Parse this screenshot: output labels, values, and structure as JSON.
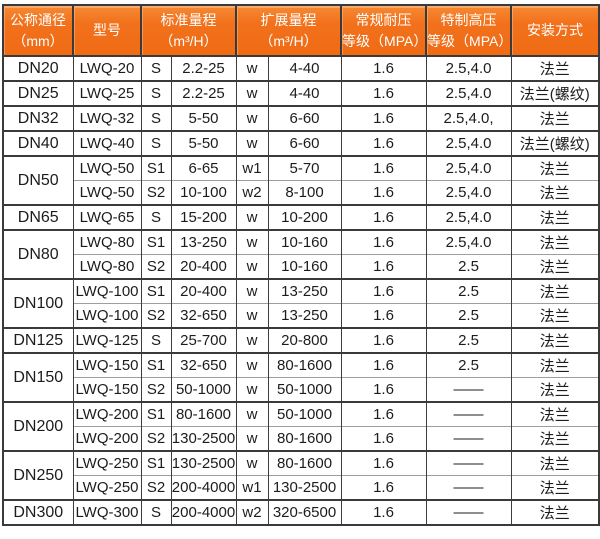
{
  "table": {
    "header": {
      "cols": [
        {
          "line1": "公称通径",
          "line2": "（mm）"
        },
        {
          "line1": "型号",
          "line2": ""
        },
        {
          "line1": "标准量程",
          "line2": "（m³/H）"
        },
        {
          "line1": "扩展量程",
          "line2": "（m³/H）"
        },
        {
          "line1": "常规耐压",
          "line2": "等级（MPA）"
        },
        {
          "line1": "特制高压",
          "line2": "等级（MPA）"
        },
        {
          "line1": "安装方式",
          "line2": ""
        }
      ]
    },
    "groups": [
      {
        "dn": "DN20",
        "rows": [
          {
            "model": "LWQ-20",
            "std_code": "S",
            "std_range": "2.2-25",
            "ext_code": "w",
            "ext_range": "4-40",
            "normal_mpa": "1.6",
            "high_mpa": "2.5,4.0",
            "install": "法兰"
          }
        ]
      },
      {
        "dn": "DN25",
        "rows": [
          {
            "model": "LWQ-25",
            "std_code": "S",
            "std_range": "2.2-25",
            "ext_code": "w",
            "ext_range": "4-40",
            "normal_mpa": "1.6",
            "high_mpa": "2.5,4.0",
            "install": "法兰(螺纹)"
          }
        ]
      },
      {
        "dn": "DN32",
        "rows": [
          {
            "model": "LWQ-32",
            "std_code": "S",
            "std_range": "5-50",
            "ext_code": "w",
            "ext_range": "6-60",
            "normal_mpa": "1.6",
            "high_mpa": "2.5,4.0,",
            "install": "法兰"
          }
        ]
      },
      {
        "dn": "DN40",
        "rows": [
          {
            "model": "LWQ-40",
            "std_code": "S",
            "std_range": "5-50",
            "ext_code": "w",
            "ext_range": "6-60",
            "normal_mpa": "1.6",
            "high_mpa": "2.5,4.0",
            "install": "法兰(螺纹)"
          }
        ]
      },
      {
        "dn": "DN50",
        "rows": [
          {
            "model": "LWQ-50",
            "std_code": "S1",
            "std_range": "6-65",
            "ext_code": "w1",
            "ext_range": "5-70",
            "normal_mpa": "1.6",
            "high_mpa": "2.5,4.0",
            "install": "法兰"
          },
          {
            "model": "LWQ-50",
            "std_code": "S2",
            "std_range": "10-100",
            "ext_code": "w2",
            "ext_range": "8-100",
            "normal_mpa": "1.6",
            "high_mpa": "2.5,4.0",
            "install": "法兰"
          }
        ]
      },
      {
        "dn": "DN65",
        "rows": [
          {
            "model": "LWQ-65",
            "std_code": "S",
            "std_range": "15-200",
            "ext_code": "w",
            "ext_range": "10-200",
            "normal_mpa": "1.6",
            "high_mpa": "2.5,4.0",
            "install": "法兰"
          }
        ]
      },
      {
        "dn": "DN80",
        "rows": [
          {
            "model": "LWQ-80",
            "std_code": "S1",
            "std_range": "13-250",
            "ext_code": "w",
            "ext_range": "10-160",
            "normal_mpa": "1.6",
            "high_mpa": "2.5,4.0",
            "install": "法兰"
          },
          {
            "model": "LWQ-80",
            "std_code": "S2",
            "std_range": "20-400",
            "ext_code": "w",
            "ext_range": "10-160",
            "normal_mpa": "1.6",
            "high_mpa": "2.5",
            "install": "法兰"
          }
        ]
      },
      {
        "dn": "DN100",
        "rows": [
          {
            "model": "LWQ-100",
            "std_code": "S1",
            "std_range": "20-400",
            "ext_code": "w",
            "ext_range": "13-250",
            "normal_mpa": "1.6",
            "high_mpa": "2.5",
            "install": "法兰"
          },
          {
            "model": "LWQ-100",
            "std_code": "S2",
            "std_range": "32-650",
            "ext_code": "w",
            "ext_range": "13-250",
            "normal_mpa": "1.6",
            "high_mpa": "2.5",
            "install": "法兰"
          }
        ]
      },
      {
        "dn": "DN125",
        "rows": [
          {
            "model": "LWQ-125",
            "std_code": "S",
            "std_range": "25-700",
            "ext_code": "w",
            "ext_range": "20-800",
            "normal_mpa": "1.6",
            "high_mpa": "2.5",
            "install": "法兰"
          }
        ]
      },
      {
        "dn": "DN150",
        "rows": [
          {
            "model": "LWQ-150",
            "std_code": "S1",
            "std_range": "32-650",
            "ext_code": "w",
            "ext_range": "80-1600",
            "normal_mpa": "1.6",
            "high_mpa": "2.5",
            "install": "法兰"
          },
          {
            "model": "LWQ-150",
            "std_code": "S2",
            "std_range": "50-1000",
            "ext_code": "w",
            "ext_range": "50-1000",
            "normal_mpa": "1.6",
            "high_mpa": "——",
            "install": "法兰"
          }
        ]
      },
      {
        "dn": "DN200",
        "rows": [
          {
            "model": "LWQ-200",
            "std_code": "S1",
            "std_range": "80-1600",
            "ext_code": "w",
            "ext_range": "50-1000",
            "normal_mpa": "1.6",
            "high_mpa": "——",
            "install": "法兰"
          },
          {
            "model": "LWQ-200",
            "std_code": "S2",
            "std_range": "130-2500",
            "ext_code": "w",
            "ext_range": "80-1600",
            "normal_mpa": "1.6",
            "high_mpa": "——",
            "install": "法兰"
          }
        ]
      },
      {
        "dn": "DN250",
        "rows": [
          {
            "model": "LWQ-250",
            "std_code": "S1",
            "std_range": "130-2500",
            "ext_code": "w",
            "ext_range": "80-1600",
            "normal_mpa": "1.6",
            "high_mpa": "——",
            "install": "法兰"
          },
          {
            "model": "LWQ-250",
            "std_code": "S2",
            "std_range": "200-4000",
            "ext_code": "w1",
            "ext_range": "130-2500",
            "normal_mpa": "1.6",
            "high_mpa": "——",
            "install": "法兰"
          }
        ]
      },
      {
        "dn": "DN300",
        "rows": [
          {
            "model": "LWQ-300",
            "std_code": "S",
            "std_range": "200-4000",
            "ext_code": "w2",
            "ext_range": "320-6500",
            "normal_mpa": "1.6",
            "high_mpa": "——",
            "install": "法兰"
          }
        ]
      }
    ],
    "colors": {
      "header_bg": "#f2711c",
      "header_text": "#ffffff",
      "border_dark": "#3a3a3a",
      "border_light": "#9e9e9e",
      "body_text": "#1c1c1c"
    }
  }
}
